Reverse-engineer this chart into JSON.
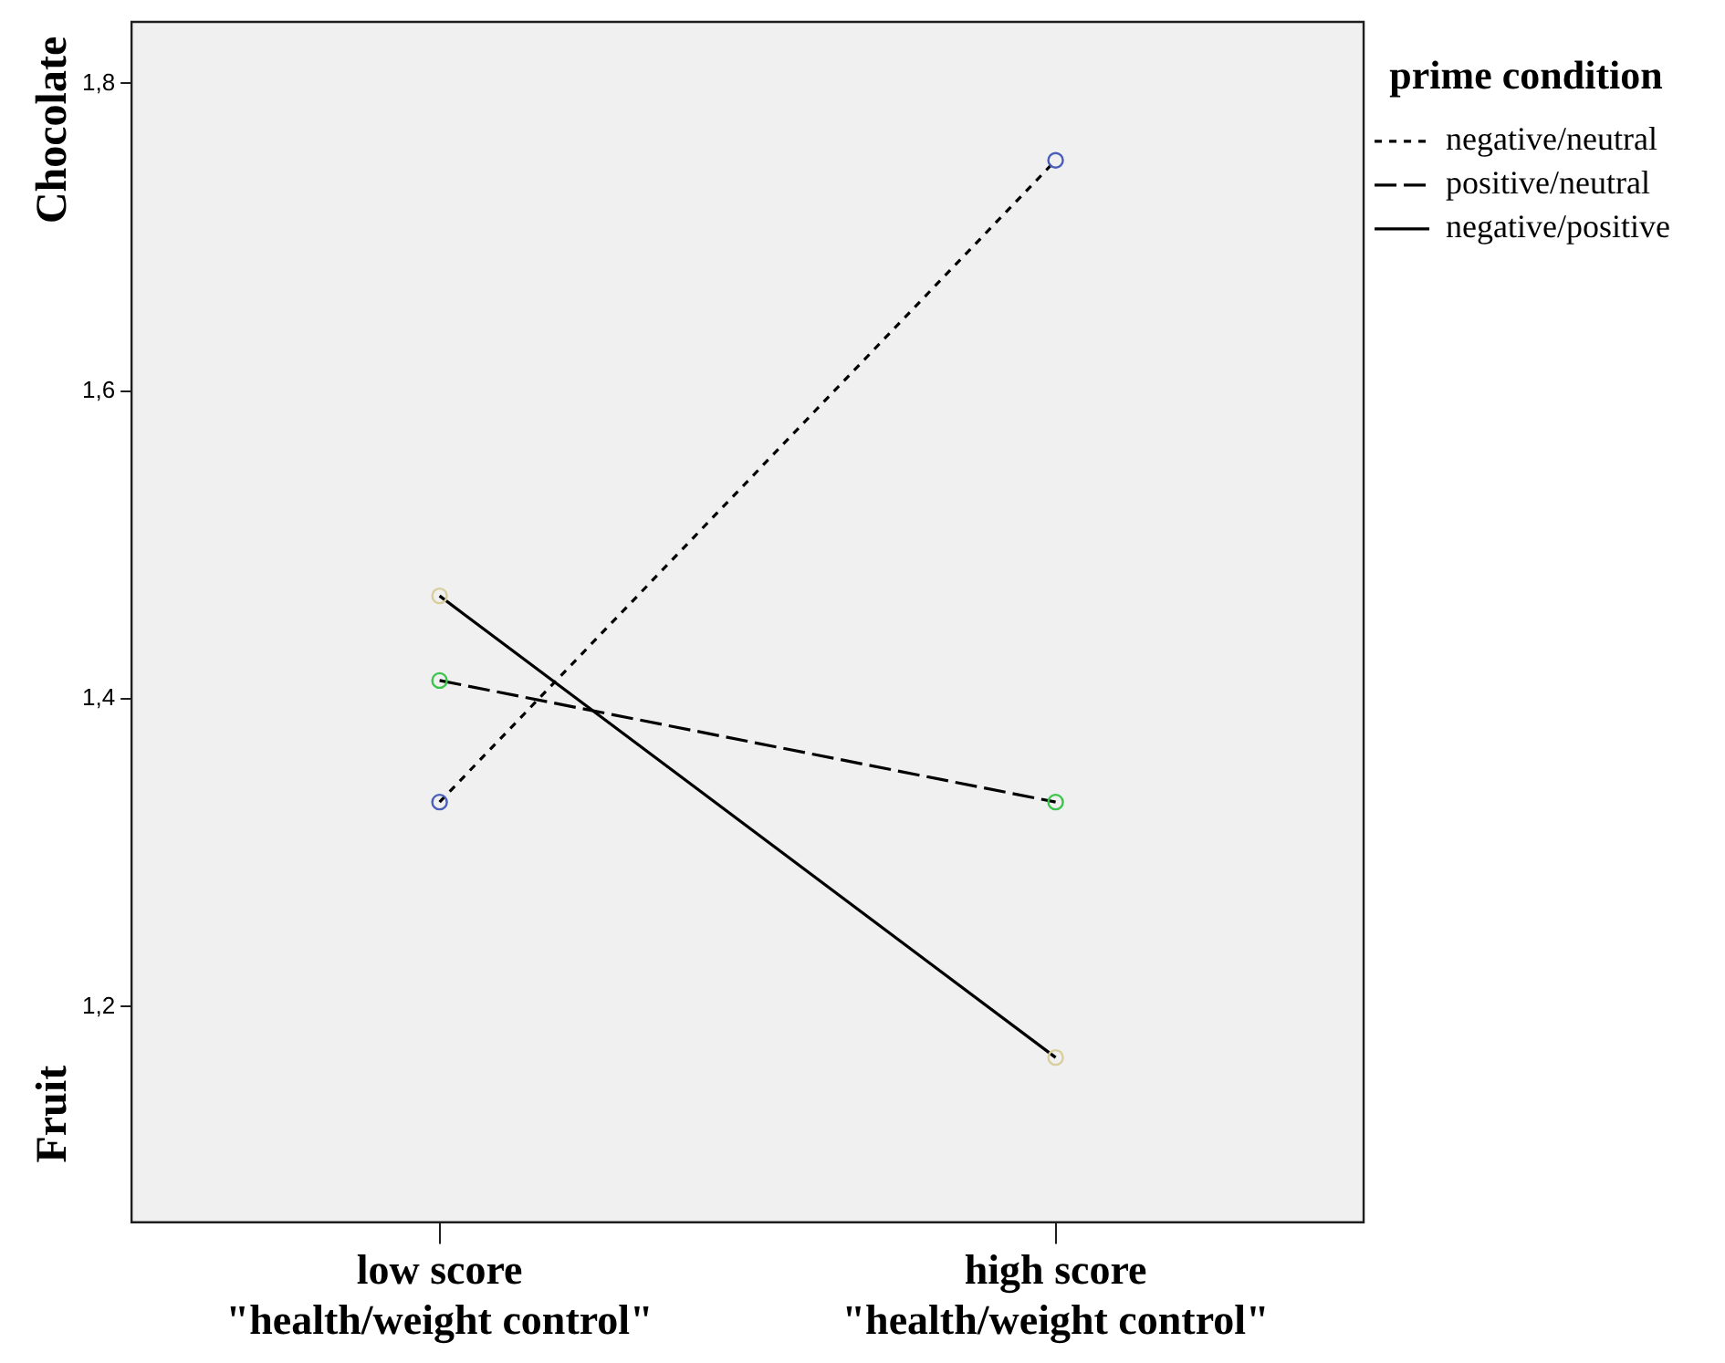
{
  "chart_data": {
    "type": "line",
    "categories": [
      "low score\n\"health/weight control\"",
      "high score\n\"health/weight control\""
    ],
    "series": [
      {
        "name": "negative/neutral",
        "color": "#000000",
        "colors": [
          "#4a5fb8",
          "#4a5fb8"
        ],
        "line_style": "dotted",
        "values": [
          1.333,
          1.75
        ]
      },
      {
        "name": "positive/neutral",
        "color": "#000000",
        "colors": [
          "#3cc44c",
          "#3cc44c"
        ],
        "line_style": "dashed",
        "values": [
          1.412,
          1.333
        ]
      },
      {
        "name": "negative/positive",
        "color": "#000000",
        "colors": [
          "#d8cf9c",
          "#d8cf9c"
        ],
        "line_style": "solid",
        "values": [
          1.467,
          1.167
        ]
      }
    ],
    "ylim": [
      1.06,
      1.84
    ],
    "yticks": [
      {
        "value": 1.2,
        "label": "1,2"
      },
      {
        "value": 1.4,
        "label": "1,4"
      },
      {
        "value": 1.6,
        "label": "1,6"
      },
      {
        "value": 1.8,
        "label": "1,8"
      }
    ],
    "annotations": [
      "Chocolate",
      "Fruit"
    ],
    "legend_title": "prime condition",
    "legend": "top right",
    "marker": "circle"
  }
}
